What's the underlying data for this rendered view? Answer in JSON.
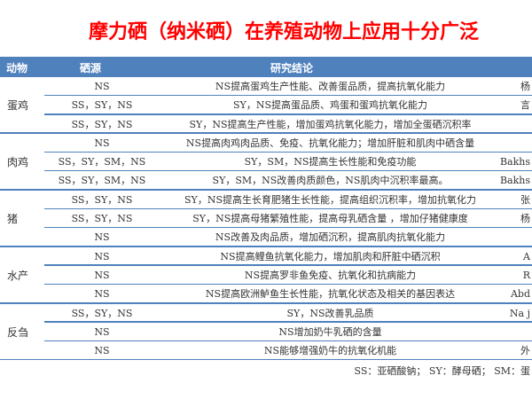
{
  "title": "摩力硒（纳米硒）在养殖动物上应用十分广泛",
  "table": {
    "headers": [
      "动物",
      "硒源",
      "研究结论"
    ],
    "groups": [
      {
        "animal": "蛋鸡",
        "rows": [
          {
            "source": "NS",
            "conclusion": "NS提高蛋鸡生产性能、改善蛋品质，提高抗氧化能力",
            "ref": "杨"
          },
          {
            "source": "SS，SY，NS",
            "conclusion": "SY，NS提高蛋品质、鸡蛋和蛋鸡抗氧化能力",
            "ref": "言"
          },
          {
            "source": "SS，SY，NS",
            "conclusion": "SY，NS提高生产性能，增加蛋鸡抗氧化能力，增加全蛋硒沉积率",
            "ref": ""
          }
        ]
      },
      {
        "animal": "肉鸡",
        "rows": [
          {
            "source": "NS",
            "conclusion": "NS提高肉鸡肉品质、免疫、抗氧化能力；增加肝脏和肌肉中硒含量",
            "ref": ""
          },
          {
            "source": "SS，SY，SM，NS",
            "conclusion": "SY，SM，NS提高生长性能和免疫功能",
            "ref": "Bakhs"
          },
          {
            "source": "SS，SY，SM，NS",
            "conclusion": "SY，SM，NS改善肉质颜色，NS肌肉中沉积率最高。",
            "ref": "Bakhs"
          }
        ]
      },
      {
        "animal": "猪",
        "rows": [
          {
            "source": "SS，SY，NS",
            "conclusion": "SY，NS提高生长育肥猪生长性能，提高组织沉积率，增加抗氧化力",
            "ref": "张"
          },
          {
            "source": "SS，SY，NS",
            "conclusion": "SY，NS提高母猪繁殖性能，提高母乳硒含量 ，增加仔猪健康度",
            "ref": "杨"
          },
          {
            "source": "NS",
            "conclusion": "NS改善及肉品质，增加硒沉积，提高肌肉抗氧化能力",
            "ref": ""
          }
        ]
      },
      {
        "animal": "水产",
        "rows": [
          {
            "source": "NS",
            "conclusion": "NS提高鲤鱼抗氧化能力，增加肌肉和肝脏中硒沉积",
            "ref": "A"
          },
          {
            "source": "NS",
            "conclusion": "NS提高罗非鱼免疫、抗氧化和抗病能力",
            "ref": "R"
          },
          {
            "source": "NS",
            "conclusion": "NS提高欧洲鲈鱼生长性能，抗氧化状态及相关的基因表达",
            "ref": "Abd"
          }
        ]
      },
      {
        "animal": "反刍",
        "rows": [
          {
            "source": "SS，SY，NS",
            "conclusion": "SY，NS改善乳品质",
            "ref": "Na j"
          },
          {
            "source": "NS",
            "conclusion": "NS增加奶牛乳硒的含量",
            "ref": ""
          },
          {
            "source": "NS",
            "conclusion": "NS能够增强奶牛的抗氧化机能",
            "ref": "外"
          }
        ]
      }
    ]
  },
  "footer": "SS：亚硒酸钠；  SY：酵母硒；  SM：蛋",
  "colors": {
    "title": "#ff0000",
    "header_bg": "#4f81bd",
    "rule": "#4f81bd"
  }
}
